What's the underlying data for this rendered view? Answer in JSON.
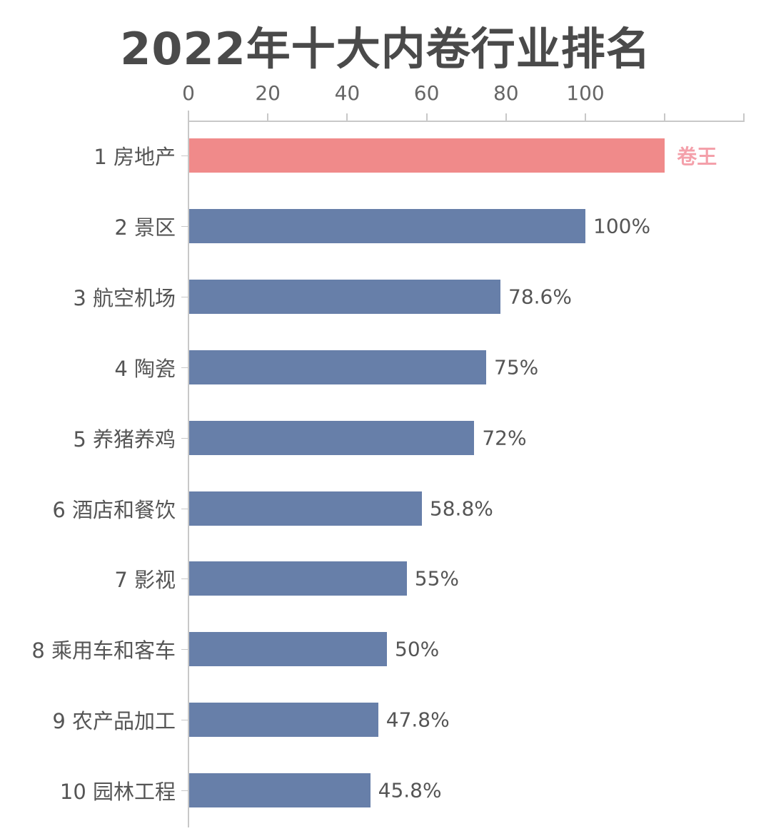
{
  "chart_data": {
    "type": "bar",
    "orientation": "horizontal",
    "title": "2022年十大内卷行业排名",
    "xlabel": "",
    "ylabel": "",
    "xlim": [
      0,
      140
    ],
    "x_ticks": [
      "0",
      "20",
      "40",
      "60",
      "80",
      "100"
    ],
    "grid": false,
    "legend": null,
    "categories": [
      "1 房地产",
      "2 景区",
      "3 航空机场",
      "4 陶瓷",
      "5 养猪养鸡",
      "6 酒店和餐饮",
      "7 影视",
      "8 乘用车和客车",
      "9 农产品加工",
      "10 园林工程"
    ],
    "values": [
      120,
      100,
      78.6,
      75,
      72,
      58.8,
      55,
      50,
      47.8,
      45.8
    ],
    "data_labels": [
      "卷王",
      "100%",
      "78.6%",
      "75%",
      "72%",
      "58.8%",
      "55%",
      "50%",
      "47.8%",
      "45.8%"
    ],
    "colors": {
      "highlight_bar": "#f08a8a",
      "highlight_label": "#f4a0aa",
      "default_bar": "#677fa9",
      "axis": "#c8c8c8",
      "text": "#555555",
      "title": "#4a4a4a"
    },
    "annotations": [
      "卷王 label on top-ranked bar (房地产)"
    ]
  }
}
